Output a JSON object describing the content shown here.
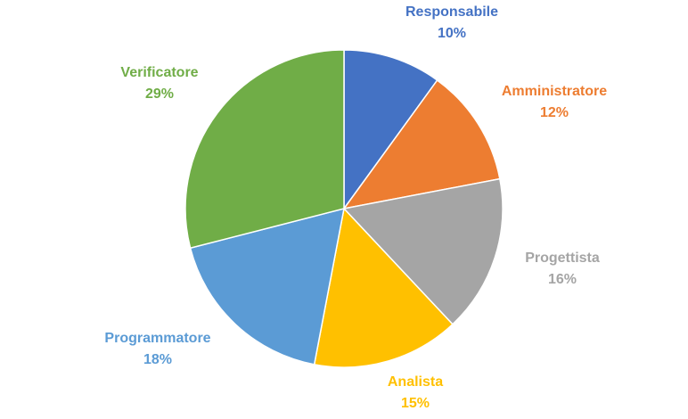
{
  "chart_data": {
    "type": "pie",
    "categories": [
      "Responsabile",
      "Amministratore",
      "Progettista",
      "Analista",
      "Programmatore",
      "Verificatore"
    ],
    "values": [
      10,
      12,
      16,
      15,
      18,
      29
    ],
    "value_labels": [
      "10%",
      "12%",
      "16%",
      "15%",
      "18%",
      "29%"
    ],
    "colors": [
      "#4472C4",
      "#ED7D31",
      "#A5A5A5",
      "#FFC000",
      "#5B9BD5",
      "#70AD47"
    ],
    "label_colors": [
      "#4472C4",
      "#ED7D31",
      "#A5A5A5",
      "#FFC000",
      "#5B9BD5",
      "#70AD47"
    ],
    "start_angle_deg": 0,
    "direction": "clockwise"
  }
}
